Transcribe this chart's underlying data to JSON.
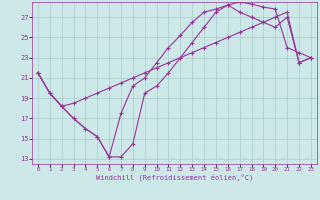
{
  "xlabel": "Windchill (Refroidissement éolien,°C)",
  "bg_color": "#cce8e8",
  "grid_color": "#aacccc",
  "line_color": "#993399",
  "xlim": [
    -0.5,
    23.5
  ],
  "ylim": [
    12.5,
    28.5
  ],
  "xticks": [
    0,
    1,
    2,
    3,
    4,
    5,
    6,
    7,
    8,
    9,
    10,
    11,
    12,
    13,
    14,
    15,
    16,
    17,
    18,
    19,
    20,
    21,
    22,
    23
  ],
  "yticks": [
    13,
    15,
    17,
    19,
    21,
    23,
    25,
    27
  ],
  "line1_x": [
    0,
    1,
    2,
    3,
    4,
    5,
    6,
    7,
    8,
    9,
    10,
    11,
    12,
    13,
    14,
    15,
    16,
    17,
    18,
    19,
    20,
    21,
    22,
    23
  ],
  "line1_y": [
    21.5,
    19.5,
    18.2,
    17.0,
    16.0,
    15.2,
    13.2,
    13.2,
    14.5,
    19.5,
    20.2,
    21.5,
    23.0,
    24.5,
    26.0,
    27.5,
    28.2,
    28.5,
    28.3,
    28.0,
    27.8,
    24.0,
    23.5,
    23.0
  ],
  "line2_x": [
    0,
    1,
    2,
    3,
    4,
    5,
    6,
    7,
    8,
    9,
    10,
    11,
    12,
    13,
    14,
    15,
    16,
    17,
    18,
    19,
    20,
    21,
    22,
    23
  ],
  "line2_y": [
    21.5,
    19.5,
    18.2,
    17.0,
    16.0,
    15.2,
    13.2,
    17.5,
    20.2,
    21.0,
    22.5,
    24.0,
    25.2,
    26.5,
    27.5,
    27.8,
    28.2,
    27.5,
    27.0,
    26.5,
    26.0,
    27.0,
    22.5,
    23.0
  ],
  "line3_x": [
    0,
    1,
    2,
    3,
    4,
    5,
    6,
    7,
    8,
    9,
    10,
    11,
    12,
    13,
    14,
    15,
    16,
    17,
    18,
    19,
    20,
    21,
    22,
    23
  ],
  "line3_y": [
    21.5,
    19.5,
    18.2,
    18.5,
    19.0,
    19.5,
    20.0,
    20.5,
    21.0,
    21.5,
    22.0,
    22.5,
    23.0,
    23.5,
    24.0,
    24.5,
    25.0,
    25.5,
    26.0,
    26.5,
    27.0,
    27.5,
    22.5,
    23.0
  ]
}
